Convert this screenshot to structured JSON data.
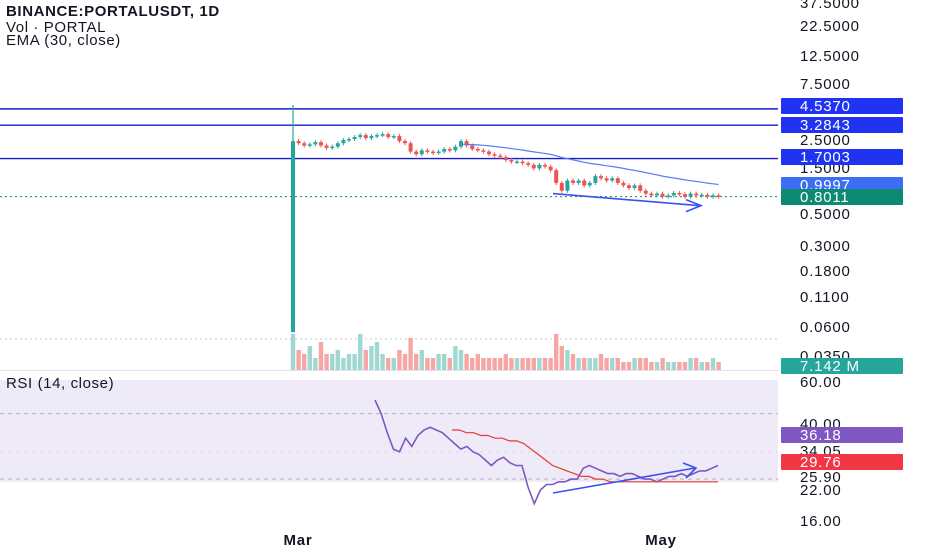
{
  "header": {
    "symbol_line": "BINANCE:PORTALUSDT, 1D",
    "volume_line": "Vol · PORTAL",
    "ema_line": "EMA (30, close)"
  },
  "rsi_header": "RSI (14, close)",
  "colors": {
    "up": "#26a69a",
    "down": "#ef5350",
    "level_line": "#1a1acc",
    "level_tag": "#2133f2",
    "ema": "#5b7cf7",
    "last_price_tag": "#0c8a72",
    "ema_tag": "#3d6df5",
    "volume_tag": "#26a69a",
    "rsi_line": "#7e57c2",
    "rsi_ma": "#e53935",
    "rsi_band": "#efeaf8",
    "trend_arrow": "#3b50f2"
  },
  "chart_data": [
    {
      "type": "candlestick",
      "title": "BINANCE:PORTALUSDT, 1D",
      "scale": "log",
      "y_ticks": [
        "37.5000",
        "22.5000",
        "12.5000",
        "7.5000",
        "2.5000",
        "1.5000",
        "0.5000",
        "0.3000",
        "0.1800",
        "0.1100",
        "0.0600",
        "0.0350"
      ],
      "x_ticks": [
        "Mar",
        "May"
      ],
      "levels": [
        {
          "label": "4.5370",
          "value": 4.537
        },
        {
          "label": "3.2843",
          "value": 3.2843
        },
        {
          "label": "1.7003",
          "value": 1.7003
        }
      ],
      "ema_label": "0.9997",
      "last_price_label": "0.8011",
      "ema_series_name": "EMA (30, close)",
      "closes": [
        2.4,
        2.3,
        2.2,
        2.25,
        2.35,
        2.2,
        2.1,
        2.15,
        2.3,
        2.45,
        2.5,
        2.6,
        2.7,
        2.55,
        2.65,
        2.7,
        2.75,
        2.6,
        2.65,
        2.4,
        2.3,
        1.95,
        1.85,
        2.0,
        1.95,
        1.9,
        1.95,
        2.05,
        2.0,
        2.15,
        2.4,
        2.2,
        2.05,
        2.0,
        1.95,
        1.85,
        1.8,
        1.75,
        1.65,
        1.6,
        1.6,
        1.55,
        1.5,
        1.4,
        1.5,
        1.45,
        1.35,
        1.05,
        0.9,
        1.1,
        1.05,
        1.1,
        1.0,
        1.05,
        1.2,
        1.15,
        1.1,
        1.15,
        1.05,
        1.0,
        0.95,
        1.0,
        0.9,
        0.85,
        0.82,
        0.85,
        0.8,
        0.82,
        0.86,
        0.84,
        0.8,
        0.85,
        0.82,
        0.83,
        0.8,
        0.82,
        0.8
      ]
    },
    {
      "type": "bar",
      "title": "Vol · PORTAL",
      "last_value_label": "7.142 M",
      "values": [
        9,
        5,
        4,
        6,
        3,
        7,
        4,
        4,
        5,
        3,
        4,
        4,
        9,
        5,
        6,
        7,
        4,
        3,
        3,
        5,
        4,
        8,
        4,
        5,
        3,
        3,
        4,
        4,
        3,
        6,
        5,
        4,
        3,
        4,
        3,
        3,
        3,
        3,
        4,
        3,
        3,
        3,
        3,
        3,
        3,
        3,
        3,
        9,
        6,
        5,
        4,
        3,
        3,
        3,
        3,
        4,
        3,
        3,
        3,
        2,
        2,
        3,
        3,
        3,
        2,
        2,
        3,
        2,
        2,
        2,
        2,
        3,
        3,
        2,
        2,
        3,
        2
      ]
    },
    {
      "type": "line",
      "title": "RSI (14, close)",
      "y_ticks": [
        "60.00",
        "40.00",
        "34.05",
        "25.90",
        "22.00",
        "16.00"
      ],
      "band": [
        30,
        70
      ],
      "rsi_label": "36.18",
      "rsi_ma_label": "29.76",
      "rsi": [
        60,
        55,
        48,
        42,
        41,
        46,
        43,
        47,
        49,
        50,
        49,
        48,
        46,
        44,
        42,
        43,
        41,
        40,
        38,
        36,
        38,
        39,
        37,
        36,
        36,
        28,
        22,
        27,
        29,
        29,
        30,
        30,
        31,
        31,
        35,
        36,
        35,
        34,
        33,
        33,
        32,
        33,
        33,
        32,
        31,
        31,
        30,
        31,
        32,
        32,
        33,
        32,
        33,
        34,
        34,
        35,
        36
      ],
      "rsi_ma": [
        49,
        49,
        48,
        48,
        47,
        47,
        46,
        46,
        45,
        45,
        44,
        42,
        40,
        38,
        36,
        35,
        34,
        33,
        32,
        32,
        31,
        31,
        30,
        30,
        30,
        30,
        30,
        30,
        30,
        30,
        30,
        30,
        30,
        30,
        30,
        30,
        30,
        30
      ],
      "x_ticks": [
        "Mar",
        "May"
      ]
    }
  ]
}
